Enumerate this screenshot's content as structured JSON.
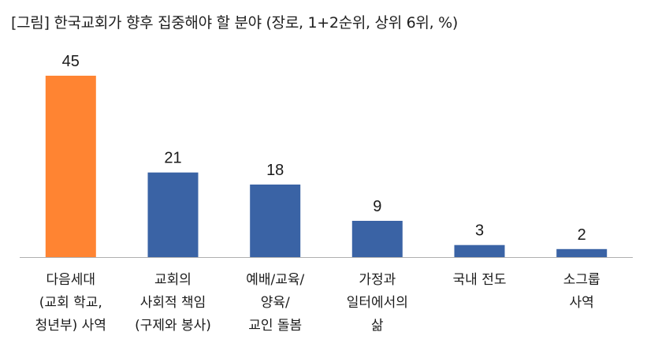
{
  "title": "[그림] 한국교회가 향후 집중해야 할 분야 (장로, 1+2순위, 상위 6위, %)",
  "colors": {
    "highlight": "#FF8432",
    "default": "#3A63A5",
    "axis": "#b0b0b0"
  },
  "chart_data": {
    "type": "bar",
    "title": "[그림] 한국교회가 향후 집중해야 할 분야 (장로, 1+2순위, 상위 6위, %)",
    "categories": [
      [
        "다음세대",
        "(교회 학교,",
        "청년부) 사역"
      ],
      [
        "교회의",
        "사회적 책임",
        "(구제와 봉사)"
      ],
      [
        "예배/교육/",
        "양육/",
        "교인 돌봄"
      ],
      [
        "가정과",
        "일터에서의",
        "삶"
      ],
      [
        "국내 전도"
      ],
      [
        "소그룹",
        "사역"
      ]
    ],
    "values": [
      45,
      21,
      18,
      9,
      3,
      2
    ],
    "highlight_index": 0,
    "ylim": [
      0,
      50
    ],
    "grid": false,
    "legend": "none"
  }
}
